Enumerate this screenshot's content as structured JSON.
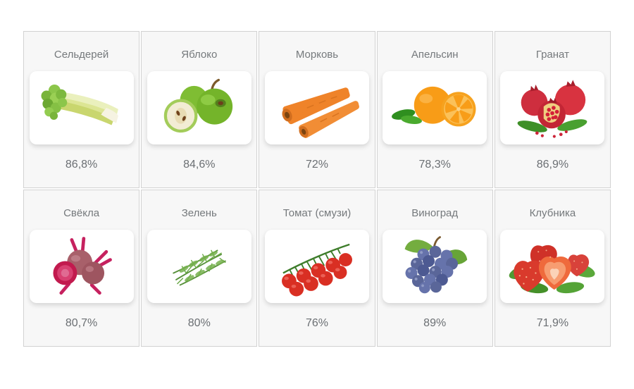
{
  "page": {
    "background_color": "#ffffff"
  },
  "table": {
    "cell_background_color": "#f7f7f7",
    "border_color": "#d2d2d2",
    "title_color": "#75797c",
    "value_color": "#6b6f73",
    "image_box_color": "#ffffff"
  },
  "items": [
    {
      "title": "Сельдерей",
      "value": "86,8%",
      "icon": "celery-image"
    },
    {
      "title": "Яблоко",
      "value": "84,6%",
      "icon": "apple-image"
    },
    {
      "title": "Морковь",
      "value": "72%",
      "icon": "carrot-image"
    },
    {
      "title": "Апельсин",
      "value": "78,3%",
      "icon": "orange-image"
    },
    {
      "title": "Гранат",
      "value": "86,9%",
      "icon": "pomegranate-image"
    },
    {
      "title": "Свёкла",
      "value": "80,7%",
      "icon": "beet-image"
    },
    {
      "title": "Зелень",
      "value": "80%",
      "icon": "greens-image"
    },
    {
      "title": "Томат (смузи)",
      "value": "76%",
      "icon": "tomato-image"
    },
    {
      "title": "Виноград",
      "value": "89%",
      "icon": "grapes-image"
    },
    {
      "title": "Клубника",
      "value": "71,9%",
      "icon": "strawberry-image"
    }
  ]
}
